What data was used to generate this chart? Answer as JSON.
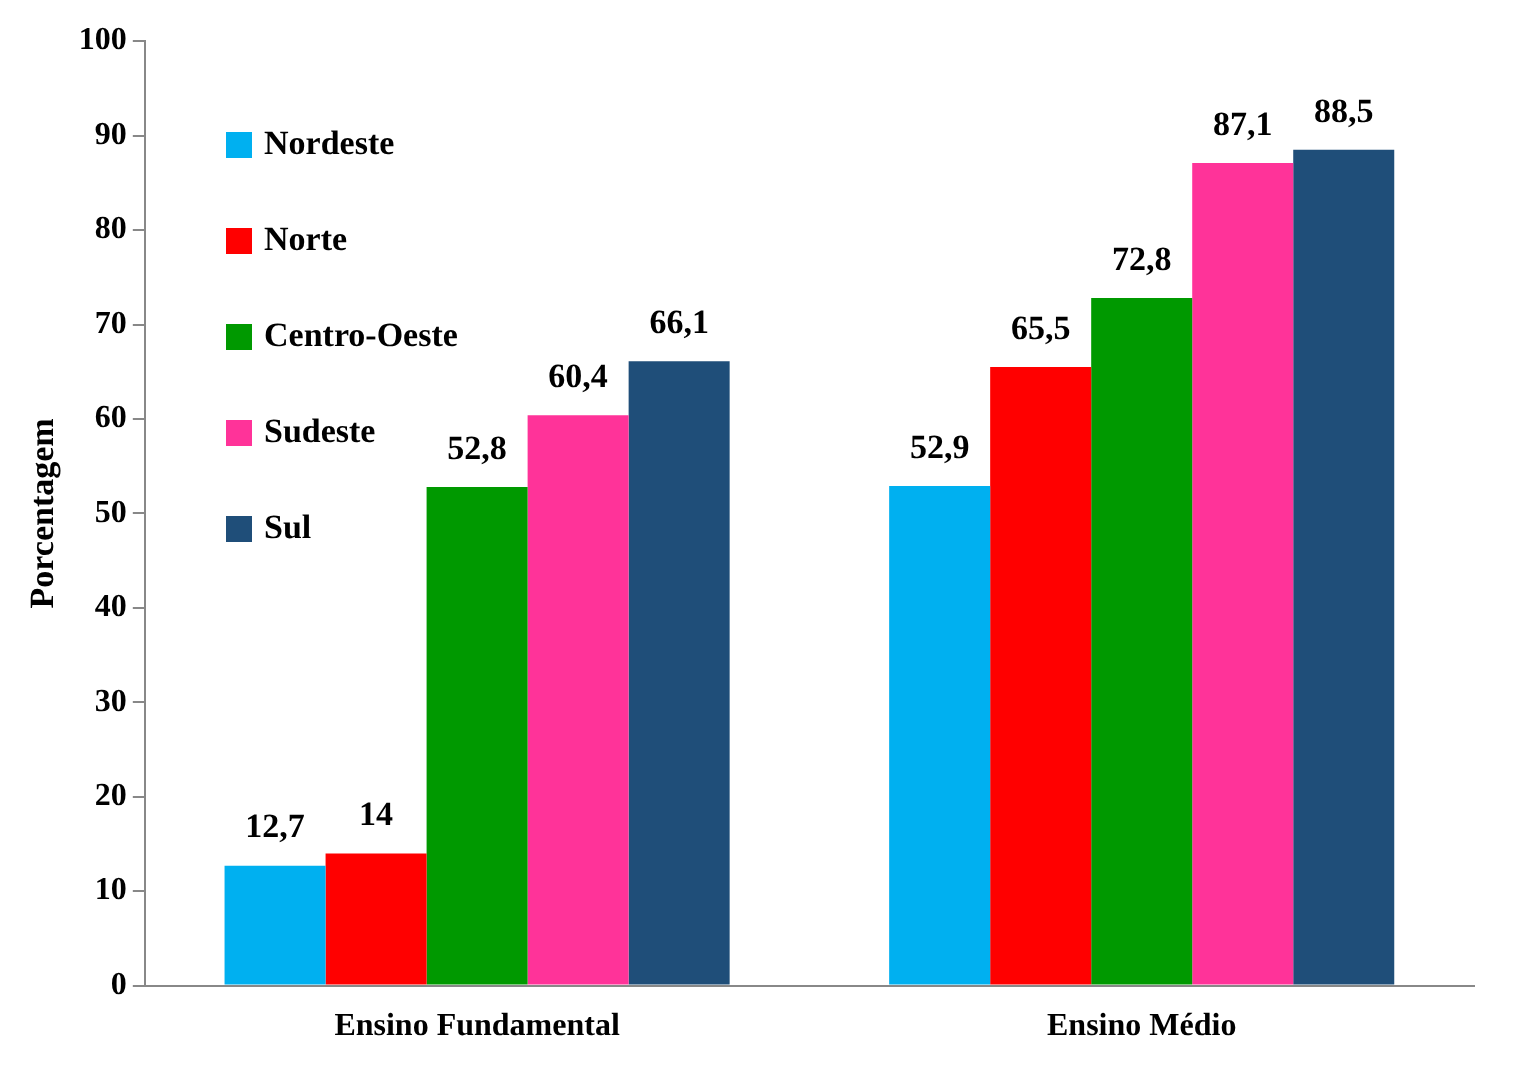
{
  "chart_data": {
    "type": "bar",
    "ylabel": "Porcentagem",
    "categories": [
      "Ensino Fundamental",
      "Ensino Médio"
    ],
    "series": [
      {
        "name": "Nordeste",
        "color": "#00b0f0",
        "values": [
          12.7,
          52.9
        ],
        "value_labels": [
          "12,7",
          "52,9"
        ]
      },
      {
        "name": "Norte",
        "color": "#ff0000",
        "values": [
          14,
          65.5
        ],
        "value_labels": [
          "14",
          "65,5"
        ]
      },
      {
        "name": "Centro-Oeste",
        "color": "#009900",
        "values": [
          52.8,
          72.8
        ],
        "value_labels": [
          "52,8",
          "72,8"
        ]
      },
      {
        "name": "Sudeste",
        "color": "#ff3399",
        "values": [
          60.4,
          87.1
        ],
        "value_labels": [
          "60,4",
          "87,1"
        ]
      },
      {
        "name": "Sul",
        "color": "#1f4e79",
        "values": [
          66.1,
          88.5
        ],
        "value_labels": [
          "66,1",
          "88,5"
        ]
      }
    ],
    "ylim": [
      0,
      100
    ],
    "yticks": [
      0,
      10,
      20,
      30,
      40,
      50,
      60,
      70,
      80,
      90,
      100
    ],
    "grid": false,
    "legend": "top left"
  }
}
